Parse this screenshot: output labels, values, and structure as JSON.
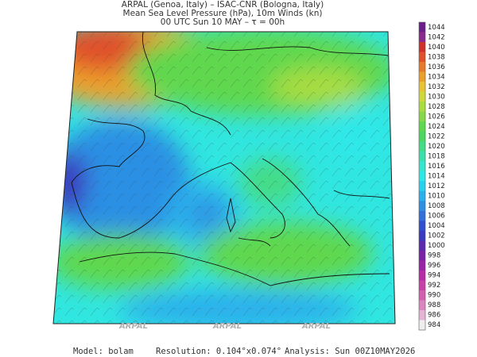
{
  "header": {
    "line1": "ARPAL (Genoa, Italy)  –  ISAC-CNR (Bologna, Italy)",
    "line2": "Mean Sea Level Pressure (hPa), 10m Winds (kn)",
    "line3": "00 UTC Sun 10 MAY  –  τ = 00h"
  },
  "watermarks": [
    "ARPAL",
    "ARPAL",
    "ARPAL"
  ],
  "colorbar": {
    "levels": [
      1044,
      1042,
      1040,
      1038,
      1036,
      1034,
      1032,
      1030,
      1028,
      1026,
      1024,
      1022,
      1020,
      1018,
      1016,
      1014,
      1012,
      1010,
      1008,
      1006,
      1004,
      1002,
      1000,
      998,
      996,
      994,
      992,
      990,
      988,
      986,
      984
    ],
    "colors": [
      "#6a1f8a",
      "#8b2a8e",
      "#d0302a",
      "#e0502a",
      "#e8782a",
      "#eca02c",
      "#e8c434",
      "#cfd83c",
      "#a8dc40",
      "#86d848",
      "#5ed84e",
      "#4cd860",
      "#44dc86",
      "#3ce0ac",
      "#38e6d0",
      "#2ee8e8",
      "#28d0f0",
      "#2ab0ec",
      "#2e90e4",
      "#3070dc",
      "#3050d0",
      "#3a3ac0",
      "#5a2ab0",
      "#7a22a8",
      "#9a24a8",
      "#b82ca8",
      "#c840a8",
      "#d460b0",
      "#dc86c0",
      "#e4b4d4",
      "#eeeeee"
    ]
  },
  "footer": {
    "model": "Model: bolam",
    "resolution": "Resolution: 0.104°x0.074°",
    "analysis": "Analysis: Sun 00Z10MAY2026"
  }
}
